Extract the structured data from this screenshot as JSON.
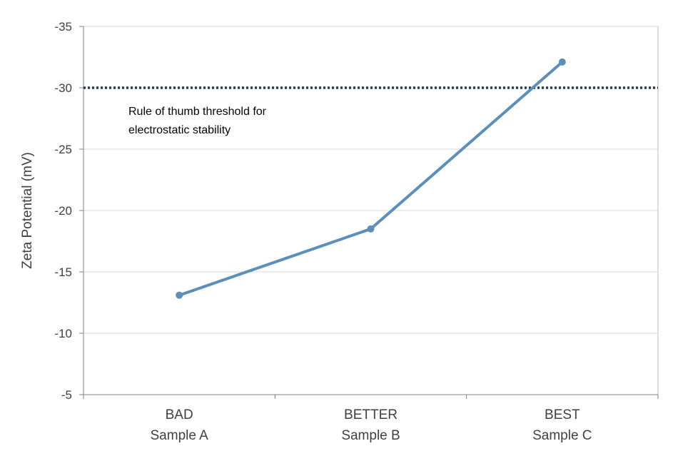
{
  "chart_data": {
    "type": "line",
    "categories": [
      {
        "line1": "BAD",
        "line2": "Sample A"
      },
      {
        "line1": "BETTER",
        "line2": "Sample B"
      },
      {
        "line1": "BEST",
        "line2": "Sample C"
      }
    ],
    "series": [
      {
        "values": [
          -13.1,
          -18.5,
          -32.1
        ],
        "color": "#5b8fba"
      }
    ],
    "ylabel": "Zeta Potential  (mV)",
    "ylim": [
      -5,
      -35
    ],
    "yticks": [
      -35,
      -30,
      -25,
      -20,
      -15,
      -10,
      -5
    ],
    "grid": true,
    "threshold": {
      "value": -30,
      "color": "#1f3864",
      "style": "dotted",
      "label_lines": [
        "Rule of thumb threshold for",
        "electrostatic stability"
      ]
    }
  }
}
